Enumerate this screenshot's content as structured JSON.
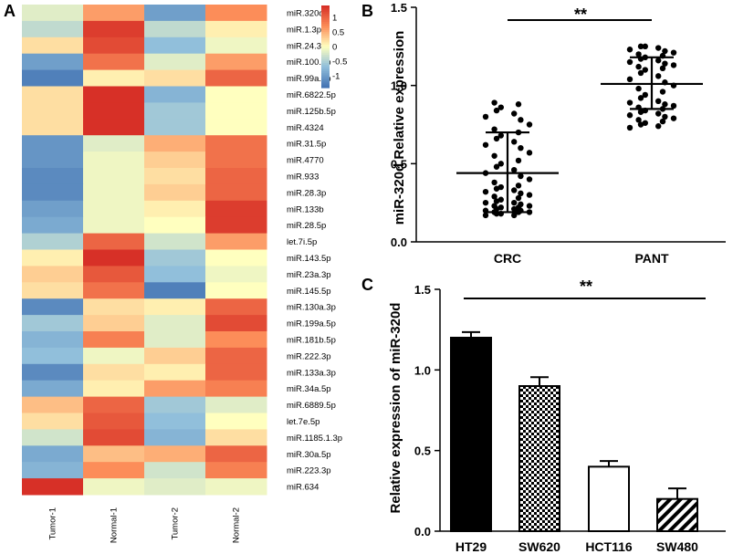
{
  "panels": {
    "a": "A",
    "b": "B",
    "c": "C"
  },
  "chart_data": [
    {
      "type": "heatmap",
      "panel": "A",
      "columns": [
        "Tumor-1",
        "Normal-1",
        "Tumor-2",
        "Normal-2"
      ],
      "rows": [
        "miR.320d",
        "miR.1.3p",
        "miR.24.3p",
        "miR.100.5p",
        "miR.99a.5p",
        "miR.6822.5p",
        "miR.125b.5p",
        "miR.4324",
        "miR.31.5p",
        "miR.4770",
        "miR.933",
        "miR.28.3p",
        "miR.133b",
        "miR.28.5p",
        "let.7i.5p",
        "miR.143.5p",
        "miR.23a.3p",
        "miR.145.5p",
        "miR.130a.3p",
        "miR.199a.5p",
        "miR.181b.5p",
        "miR.222.3p",
        "miR.133a.3p",
        "miR.34a.5p",
        "miR.6889.5p",
        "let.7e.5p",
        "miR.1185.1.3p",
        "miR.30a.5p",
        "miR.223.3p",
        "miR.634"
      ],
      "values": [
        [
          -0.2,
          0.6,
          -1.0,
          0.7
        ],
        [
          -0.4,
          1.3,
          -0.4,
          0.1
        ],
        [
          0.2,
          1.2,
          -0.7,
          -0.1
        ],
        [
          -1.0,
          0.9,
          -0.2,
          0.6
        ],
        [
          -1.3,
          0.1,
          0.2,
          1.0
        ],
        [
          0.2,
          1.4,
          -0.8,
          0.0
        ],
        [
          0.2,
          1.4,
          -0.6,
          0.0
        ],
        [
          0.2,
          1.4,
          -0.6,
          0.0
        ],
        [
          -1.1,
          -0.2,
          0.5,
          0.9
        ],
        [
          -1.1,
          -0.1,
          0.3,
          0.9
        ],
        [
          -1.2,
          -0.1,
          0.2,
          1.0
        ],
        [
          -1.2,
          -0.1,
          0.3,
          1.0
        ],
        [
          -1.0,
          -0.1,
          0.1,
          1.3
        ],
        [
          -0.9,
          -0.1,
          0.0,
          1.3
        ],
        [
          -0.5,
          1.0,
          -0.3,
          0.6
        ],
        [
          0.1,
          1.4,
          -0.6,
          0.0
        ],
        [
          0.3,
          1.1,
          -0.7,
          -0.1
        ],
        [
          0.2,
          0.9,
          -1.3,
          0.0
        ],
        [
          -1.2,
          0.2,
          0.1,
          1.0
        ],
        [
          -0.6,
          0.3,
          -0.2,
          1.2
        ],
        [
          -0.8,
          0.8,
          -0.2,
          0.7
        ],
        [
          -0.7,
          -0.1,
          0.3,
          1.0
        ],
        [
          -1.2,
          0.2,
          0.1,
          1.0
        ],
        [
          -0.9,
          0.1,
          0.6,
          0.8
        ],
        [
          0.4,
          1.0,
          -0.6,
          -0.2
        ],
        [
          0.2,
          1.1,
          -0.7,
          0.0
        ],
        [
          -0.3,
          1.2,
          -0.8,
          0.2
        ],
        [
          -0.9,
          0.4,
          0.5,
          1.0
        ],
        [
          -0.8,
          0.7,
          -0.3,
          0.8
        ],
        [
          1.4,
          -0.1,
          -0.2,
          -0.1
        ]
      ],
      "color_scale": {
        "min": -1.4,
        "max": 1.4,
        "ticks": [
          "1",
          "0.5",
          "0",
          "-0.5",
          "-1"
        ]
      },
      "colors": [
        "#4575b4",
        "#91bfdb",
        "#ffffbf",
        "#fc8d59",
        "#d73027"
      ]
    },
    {
      "type": "scatter",
      "panel": "B",
      "ylabel": "miR-320d Relative expression",
      "categories": [
        "CRC",
        "PANT"
      ],
      "ylim": [
        0,
        1.5
      ],
      "yticks": [
        "0.0",
        "0.5",
        "1.0",
        "1.5"
      ],
      "significance": "**",
      "groups": [
        {
          "name": "CRC",
          "mean": 0.44,
          "sd_low": 0.19,
          "sd_high": 0.7,
          "points": [
            0.17,
            0.17,
            0.18,
            0.18,
            0.19,
            0.19,
            0.19,
            0.2,
            0.2,
            0.21,
            0.21,
            0.22,
            0.22,
            0.23,
            0.23,
            0.24,
            0.25,
            0.25,
            0.26,
            0.27,
            0.28,
            0.29,
            0.3,
            0.31,
            0.32,
            0.33,
            0.34,
            0.35,
            0.36,
            0.38,
            0.4,
            0.42,
            0.44,
            0.46,
            0.48,
            0.5,
            0.52,
            0.55,
            0.57,
            0.6,
            0.62,
            0.64,
            0.66,
            0.68,
            0.7,
            0.72,
            0.75,
            0.78,
            0.8,
            0.82,
            0.84,
            0.86,
            0.88,
            0.89
          ]
        },
        {
          "name": "PANT",
          "mean": 1.01,
          "sd_low": 0.85,
          "sd_high": 1.18,
          "points": [
            0.73,
            0.74,
            0.75,
            0.76,
            0.77,
            0.78,
            0.79,
            0.8,
            0.81,
            0.82,
            0.83,
            0.84,
            0.85,
            0.86,
            0.87,
            0.88,
            0.89,
            0.9,
            0.92,
            0.94,
            0.96,
            0.98,
            1.0,
            1.02,
            1.04,
            1.06,
            1.08,
            1.1,
            1.11,
            1.12,
            1.13,
            1.14,
            1.15,
            1.16,
            1.17,
            1.18,
            1.19,
            1.2,
            1.21,
            1.22,
            1.23,
            1.24,
            1.25,
            1.25
          ]
        }
      ]
    },
    {
      "type": "bar",
      "panel": "C",
      "ylabel": "Relative expression of miR-320d",
      "categories": [
        "HT29",
        "SW620",
        "HCT116",
        "SW480"
      ],
      "values": [
        1.2,
        0.9,
        0.4,
        0.2
      ],
      "errors": [
        0.035,
        0.055,
        0.035,
        0.065
      ],
      "fills": [
        "solid",
        "checker",
        "empty",
        "hatch"
      ],
      "ylim": [
        0,
        1.5
      ],
      "yticks": [
        "0.0",
        "0.5",
        "1.0",
        "1.5"
      ],
      "significance": "**"
    }
  ]
}
